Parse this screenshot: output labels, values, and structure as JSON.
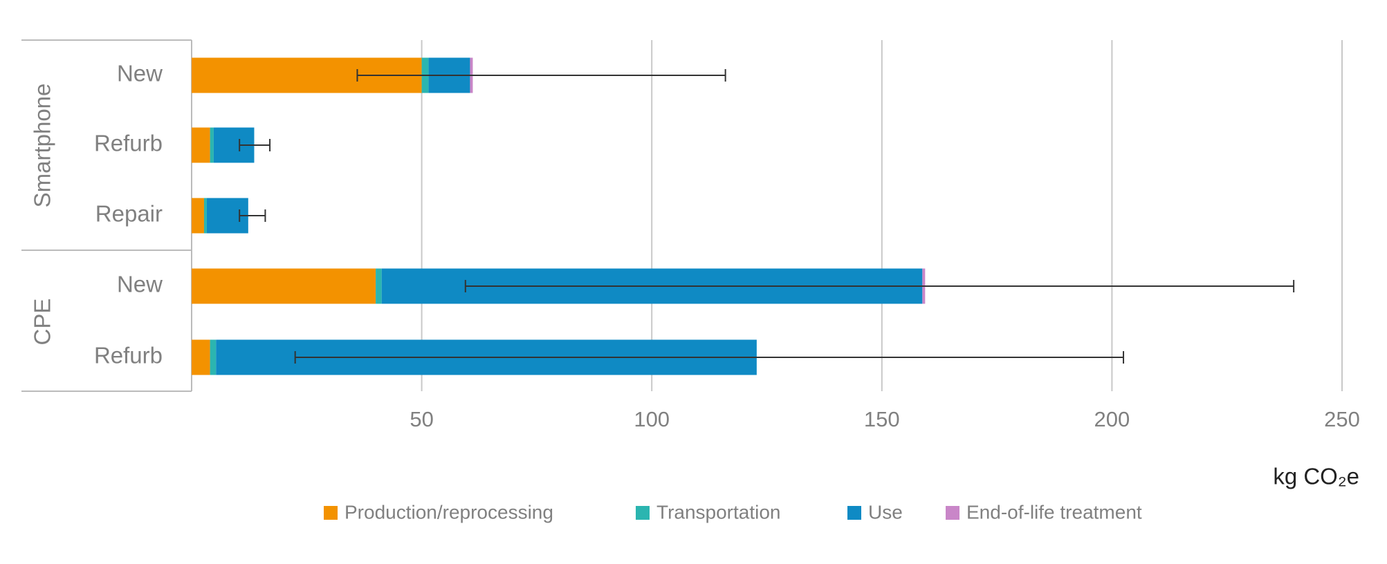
{
  "chart_data": {
    "type": "stacked_barh",
    "groups": [
      {
        "label": "Smartphone",
        "categories": [
          "New",
          "Refurb",
          "Repair"
        ]
      },
      {
        "label": "CPE",
        "categories": [
          "New",
          "Refurb"
        ]
      }
    ],
    "series": [
      {
        "name": "Production/reprocessing",
        "color": "#f39200",
        "values": [
          50,
          4,
          2.7,
          40,
          4
        ]
      },
      {
        "name": "Transportation",
        "color": "#2bb5b0",
        "values": [
          1.5,
          0.8,
          0.6,
          1.3,
          1.3
        ]
      },
      {
        "name": "Use",
        "color": "#0f8ac4",
        "values": [
          9,
          8.8,
          9,
          117.5,
          117.5
        ]
      },
      {
        "name": "End-of-life treatment",
        "color": "#c986c8",
        "values": [
          0.6,
          0,
          0,
          0.6,
          0
        ]
      }
    ],
    "error_bars": [
      {
        "low": 36,
        "high": 116
      },
      {
        "low": 10.4,
        "high": 17
      },
      {
        "low": 10.4,
        "high": 16
      },
      {
        "low": 59.5,
        "high": 239.5
      },
      {
        "low": 22.5,
        "high": 202.5
      }
    ],
    "xlabel": "kg CO₂e",
    "xlim": [
      0,
      250
    ],
    "xticks": [
      50,
      100,
      150,
      200,
      250
    ],
    "grid": true
  }
}
